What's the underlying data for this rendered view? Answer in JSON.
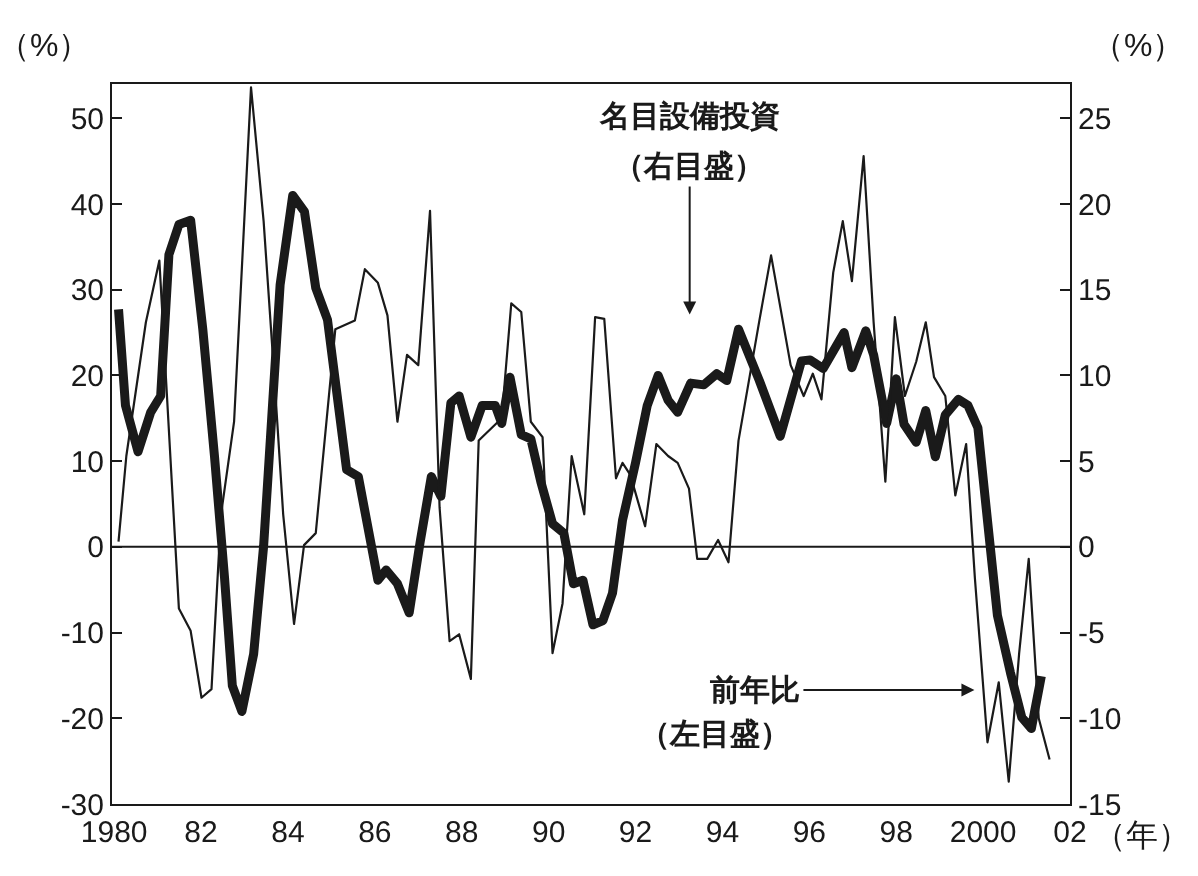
{
  "chart_data": {
    "type": "line",
    "xlabel": "（年）",
    "ylabel": "（%）",
    "y2label": "（%）",
    "xlim": [
      1979.95,
      2002.0
    ],
    "xticks": [
      {
        "value": 1980,
        "label": "1980"
      },
      {
        "value": 1982,
        "label": "82"
      },
      {
        "value": 1984,
        "label": "84"
      },
      {
        "value": 1986,
        "label": "86"
      },
      {
        "value": 1988,
        "label": "88"
      },
      {
        "value": 1990,
        "label": "90"
      },
      {
        "value": 1992,
        "label": "92"
      },
      {
        "value": 1994,
        "label": "94"
      },
      {
        "value": 1996,
        "label": "96"
      },
      {
        "value": 1998,
        "label": "98"
      },
      {
        "value": 2000,
        "label": "2000"
      },
      {
        "value": 2002,
        "label": "02"
      }
    ],
    "ylim": [
      -30,
      54
    ],
    "yticks": [
      -30,
      -20,
      -10,
      0,
      10,
      20,
      30,
      40,
      50
    ],
    "y2lim": [
      -15,
      27
    ],
    "y2ticks": [
      -15,
      -10,
      -5,
      0,
      5,
      10,
      15,
      20,
      25
    ],
    "legend": false,
    "marker": "none",
    "line_style": "solid",
    "ref_lines": [
      {
        "axis": "y",
        "value": 0,
        "color": "#1a1a1a"
      }
    ],
    "annotations": [
      "名目設備投資",
      "（右目盛）",
      {
        "text": "前年比",
        "x": 1999.8,
        "y": -16.7
      },
      "（左目盛）"
    ],
    "series": [
      {
        "color": "#1a1a1a",
        "x": [
          1980.1,
          1980.26,
          1980.55,
          1980.84,
          1981.07,
          1981.26,
          1981.49,
          1981.76,
          1982.04,
          1982.31,
          1982.54,
          1982.72,
          1982.94,
          1983.21,
          1983.44,
          1983.82,
          1984.11,
          1984.38,
          1984.64,
          1984.91,
          1985.35,
          1985.62,
          1986.07,
          1986.26,
          1986.52,
          1986.79,
          1987.04,
          1987.3,
          1987.52,
          1987.75,
          1987.94,
          1988.21,
          1988.47,
          1988.77,
          1988.92,
          1989.11,
          1989.37,
          1989.59,
          1989.82,
          1990.09,
          1990.35,
          1990.57,
          1990.79,
          1991.02,
          1991.25,
          1991.47,
          1991.7,
          1992.0,
          1992.27,
          1992.52,
          1992.75,
          1992.97,
          1993.27,
          1993.57,
          1993.87,
          1994.1,
          1994.37,
          1994.85,
          1995.33,
          1995.82,
          1996.02,
          1996.32,
          1996.8,
          1996.98,
          1997.3,
          1997.48,
          1997.78,
          1998.0,
          1998.18,
          1998.46,
          1998.68,
          1998.9,
          1999.13,
          1999.43,
          1999.65,
          1999.88,
          2000.1,
          2000.33,
          2000.63,
          2000.89,
          2001.11,
          2001.34
        ],
        "values": [
          27.7,
          16.5,
          11.1,
          15.7,
          17.6,
          34.1,
          37.6,
          38.1,
          25.4,
          10.5,
          -3.6,
          -16.2,
          -19.2,
          -12.5,
          0.1,
          30.6,
          41.0,
          39.1,
          30.2,
          26.5,
          9.0,
          8.2,
          -3.9,
          -2.7,
          -4.3,
          -7.7,
          0.5,
          8.2,
          5.9,
          16.8,
          17.6,
          12.8,
          16.5,
          16.5,
          14.4,
          19.8,
          13.1,
          12.6,
          7.6,
          2.7,
          1.6,
          -4.3,
          -3.9,
          -9.1,
          -8.6,
          -5.4,
          3.1,
          9.8,
          16.5,
          20.0,
          17.1,
          15.7,
          19.1,
          18.9,
          20.2,
          19.4,
          25.4,
          19.4,
          12.9,
          21.7,
          21.8,
          20.8,
          25.0,
          20.9,
          25.2,
          22.4,
          14.4,
          19.6,
          14.3,
          12.2,
          15.9,
          10.5,
          15.4,
          17.2,
          16.5,
          13.9,
          3.1,
          -8.0,
          -14.7,
          -19.9,
          -21.2,
          -15.1
        ]
      },
      {
        "color": "#1a1a1a",
        "axis": "y2",
        "x": [
          1980.1,
          1980.28,
          1980.73,
          1981.04,
          1981.49,
          1981.76,
          1982.01,
          1982.24,
          1982.46,
          1982.76,
          1983.15,
          1983.44,
          1983.71,
          1983.89,
          1984.14,
          1984.37,
          1984.64,
          1985.09,
          1985.54,
          1985.77,
          1986.07,
          1986.29,
          1986.52,
          1986.74,
          1987.0,
          1987.27,
          1987.49,
          1987.72,
          1987.94,
          1988.21,
          1988.39,
          1988.92,
          1989.14,
          1989.37,
          1989.59,
          1989.86,
          1990.09,
          1990.32,
          1990.53,
          1990.82,
          1991.07,
          1991.28,
          1991.55,
          1991.7,
          1991.88,
          1992.22,
          1992.48,
          1992.75,
          1992.97,
          1993.23,
          1993.42,
          1993.65,
          1993.9,
          1994.14,
          1994.37,
          1994.85,
          1995.12,
          1995.57,
          1995.87,
          1996.08,
          1996.28,
          1996.55,
          1996.77,
          1996.98,
          1997.25,
          1997.48,
          1997.75,
          1997.97,
          1998.2,
          1998.46,
          1998.68,
          1998.87,
          1999.13,
          1999.36,
          1999.61,
          1999.81,
          2000.1,
          2000.36,
          2000.59,
          2000.83,
          2001.05,
          2001.28,
          2001.53
        ],
        "values": [
          0.3,
          5.3,
          13.1,
          16.7,
          -3.6,
          -4.9,
          -8.8,
          -8.3,
          1.9,
          7.3,
          26.8,
          19.0,
          9.0,
          1.9,
          -4.5,
          0.1,
          0.8,
          12.7,
          13.2,
          16.2,
          15.4,
          13.5,
          7.3,
          11.2,
          10.6,
          19.6,
          2.3,
          -5.5,
          -5.1,
          -7.7,
          6.2,
          7.5,
          14.2,
          13.7,
          7.3,
          6.4,
          -6.2,
          -3.3,
          5.3,
          1.9,
          13.4,
          13.3,
          4.0,
          4.9,
          4.2,
          1.2,
          6.0,
          5.3,
          4.9,
          3.4,
          -0.7,
          -0.7,
          0.4,
          -0.9,
          6.2,
          13.2,
          17.0,
          10.6,
          8.8,
          10.1,
          8.6,
          16.0,
          19.0,
          15.5,
          22.8,
          13.1,
          3.8,
          13.4,
          8.8,
          10.8,
          13.1,
          9.9,
          8.8,
          3.0,
          6.0,
          -1.8,
          -11.4,
          -7.9,
          -13.7,
          -6.2,
          -0.7,
          -10.0,
          -12.4
        ]
      }
    ]
  }
}
